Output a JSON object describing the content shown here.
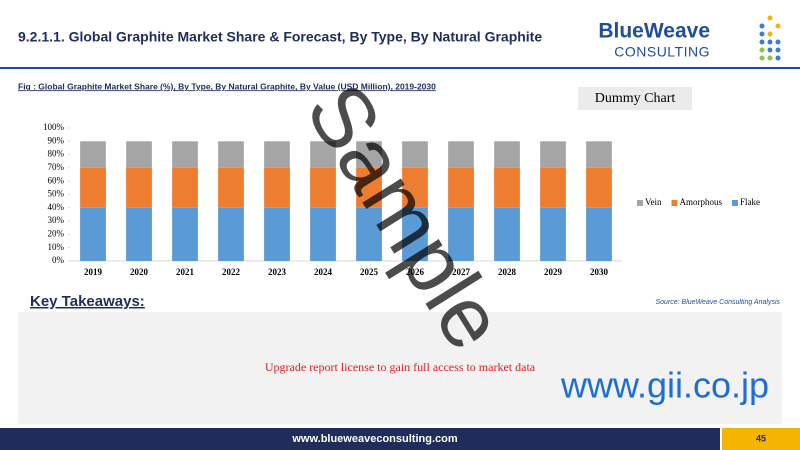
{
  "header": {
    "title": "9.2.1.1. Global Graphite Market Share & Forecast, By Type, By Natural Graphite",
    "logo_name": "BlueWeave",
    "logo_sub": "CONSULTING"
  },
  "figure_caption": "Fig : Global Graphite Market Share (%), By Type, By Natural Graphite, By Value (USD Million), 2019-2030",
  "chart_data": {
    "type": "stacked_bar",
    "annotation": "Dummy Chart",
    "categories": [
      "2019",
      "2020",
      "2021",
      "2022",
      "2023",
      "2024",
      "2025",
      "2026",
      "2027",
      "2028",
      "2029",
      "2030"
    ],
    "series": [
      {
        "name": "Flake",
        "color": "#5b9bd5",
        "values": [
          40,
          40,
          40,
          40,
          40,
          40,
          40,
          40,
          40,
          40,
          40,
          40
        ]
      },
      {
        "name": "Amorphous",
        "color": "#ed7d31",
        "values": [
          30,
          30,
          30,
          30,
          30,
          30,
          30,
          30,
          30,
          30,
          30,
          30
        ]
      },
      {
        "name": "Vein",
        "color": "#a5a5a5",
        "values": [
          20,
          20,
          20,
          20,
          20,
          20,
          20,
          20,
          20,
          20,
          20,
          20
        ]
      }
    ],
    "ylim": [
      0,
      100
    ],
    "yticks": [
      {
        "value": 0,
        "label": "0%"
      },
      {
        "value": 10,
        "label": "10%"
      },
      {
        "value": 20,
        "label": "20%"
      },
      {
        "value": 30,
        "label": "30%"
      },
      {
        "value": 40,
        "label": "40%"
      },
      {
        "value": 50,
        "label": "50%"
      },
      {
        "value": 60,
        "label": "60%"
      },
      {
        "value": 70,
        "label": "70%"
      },
      {
        "value": 80,
        "label": "80%"
      },
      {
        "value": 90,
        "label": "90%"
      },
      {
        "value": 100,
        "label": "100%"
      }
    ],
    "legend": "right"
  },
  "key_takeaways": "Key Takeaways:",
  "source": "Source: BlueWeave Consulting Analysis",
  "upgrade_notice": "Upgrade report license to gain full access to market data",
  "watermark": "Sample",
  "watermark_url": "www.gii.co.jp",
  "footer": {
    "url": "www.blueweaveconsulting.com",
    "page": "45"
  }
}
